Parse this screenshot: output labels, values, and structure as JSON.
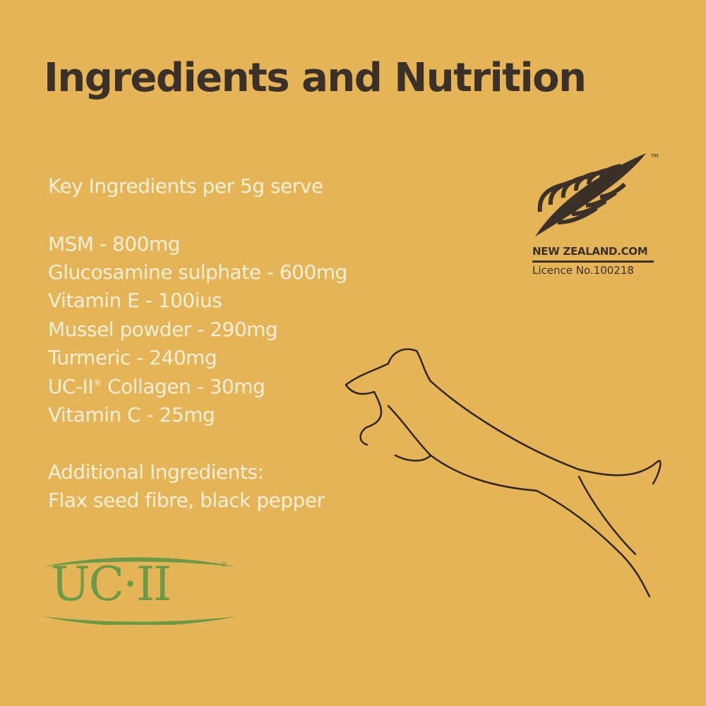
{
  "title": "Ingredients and Nutrition",
  "key_heading": "Key Ingredients per 5g serve",
  "ingredients": [
    {
      "text": "MSM - 800mg"
    },
    {
      "text": "Glucosamine sulphate - 600mg"
    },
    {
      "text": "Vitamin E - 100ius"
    },
    {
      "text": "Mussel powder - 290mg"
    },
    {
      "text": "Turmeric - 240mg"
    },
    {
      "pre": "UC-II",
      "sup": "®",
      "post": " Collagen - 30mg"
    },
    {
      "text": "Vitamin C - 25mg"
    }
  ],
  "additional_heading": "Additional Ingredients:",
  "additional_text": "Flax seed fibre, black pepper",
  "nz_logo": {
    "line1": "NEW ZEALAND.COM",
    "line2": "Licence No.100218",
    "tm": "TM"
  },
  "ucii_logo": {
    "text": "UC·II",
    "reg": "®"
  },
  "colors": {
    "background": "#e5b457",
    "title": "#3b3129",
    "text": "#faf0da",
    "ucii_green": "#6a9a48"
  }
}
